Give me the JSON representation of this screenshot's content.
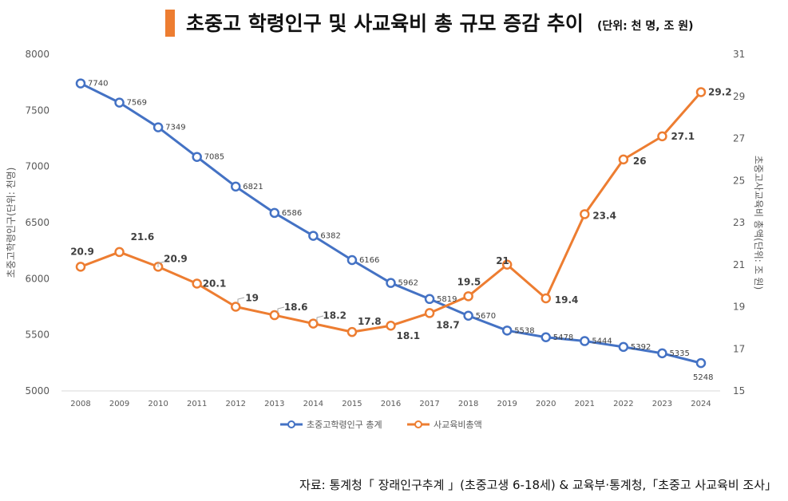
{
  "header": {
    "title": "초중고 학령인구 및 사교육비 총 규모 증감 추이",
    "unit_note": "(단위: 천 명, 조 원)"
  },
  "source_note": "자료: 통계청「 장래인구추계 」(초중고생 6-18세) & 교육부·통계청,「초중고 사교육비 조사」",
  "colors": {
    "population": "#4472C4",
    "spending": "#ED7D31",
    "title_accent": "#ED7D31"
  },
  "chart_data": {
    "type": "line",
    "categories": [
      "2008",
      "2009",
      "2010",
      "2011",
      "2012",
      "2013",
      "2014",
      "2015",
      "2016",
      "2017",
      "2018",
      "2019",
      "2020",
      "2021",
      "2022",
      "2023",
      "2024"
    ],
    "series": [
      {
        "name": "초중고학령인구 총계",
        "axis": "left",
        "values": [
          7740,
          7569,
          7349,
          7085,
          6821,
          6586,
          6382,
          6166,
          5962,
          5819,
          5670,
          5538,
          5478,
          5444,
          5392,
          5335,
          5248
        ],
        "data_labels": [
          "7740",
          "7569",
          "7349",
          "7085",
          "6821",
          "6586",
          "6382",
          "6166",
          "5962",
          "5819",
          "5670",
          "5538",
          "5478",
          "5444",
          "5392",
          "5335",
          "5248"
        ]
      },
      {
        "name": "사교육비총액",
        "axis": "right",
        "values": [
          20.9,
          21.6,
          20.9,
          20.1,
          19,
          18.6,
          18.2,
          17.8,
          18.1,
          18.7,
          19.5,
          21,
          19.4,
          23.4,
          26,
          27.1,
          29.2
        ],
        "data_labels": [
          "20.9",
          "21.6",
          "20.9",
          "20.1",
          "19",
          "18.6",
          "18.2",
          "17.8",
          "18.1",
          "18.7",
          "19.5",
          "21",
          "19.4",
          "23.4",
          "26",
          "27.1",
          "29.2"
        ]
      }
    ],
    "y_left": {
      "label": "초중고학령인구(단위: 천명)",
      "range": [
        5000,
        8000
      ],
      "ticks": [
        "5000",
        "5500",
        "6000",
        "6500",
        "7000",
        "7500",
        "8000"
      ]
    },
    "y_right": {
      "label": "초중고사교육비 총액(단위: 조 원)",
      "range": [
        15,
        31
      ],
      "ticks": [
        "15",
        "17",
        "19",
        "21",
        "23",
        "25",
        "27",
        "29",
        "31"
      ]
    },
    "grid": false,
    "legend_position": "bottom"
  }
}
